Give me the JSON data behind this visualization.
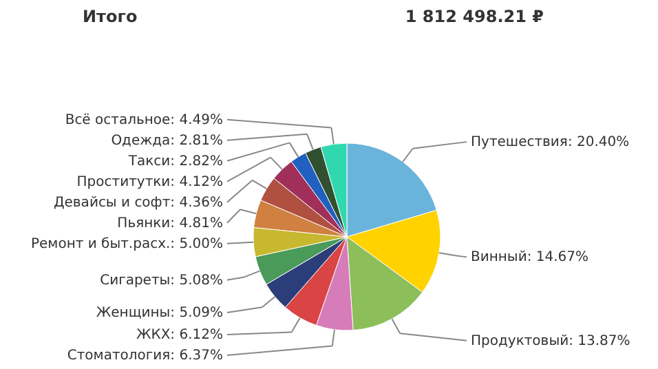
{
  "chart_data": {
    "type": "pie",
    "title": "Итого",
    "annotations": [
      "1 812 498.21 ₽"
    ],
    "categories": [
      "Путешествия",
      "Винный",
      "Продуктовый",
      "Стоматология",
      "ЖКХ",
      "Женщины",
      "Сигареты",
      "Ремонт и быт.расх.",
      "Пьянки",
      "Девайсы и софт",
      "Проститутки",
      "Такси",
      "Одежда",
      "Всё остальное"
    ],
    "values": [
      20.4,
      14.67,
      13.87,
      6.37,
      6.12,
      5.09,
      5.08,
      5.0,
      4.81,
      4.36,
      4.12,
      2.82,
      2.81,
      4.49
    ],
    "value_labels": [
      "20.40%",
      "14.67%",
      "13.87%",
      "6.37%",
      "6.12%",
      "5.09%",
      "5.08%",
      "5.00%",
      "4.81%",
      "4.36%",
      "4.12%",
      "2.82%",
      "2.81%",
      "4.49%"
    ],
    "colors": [
      "#6ab4dc",
      "#ffd200",
      "#8cbe5a",
      "#d67cb8",
      "#d94444",
      "#2c3e7a",
      "#4a9a5a",
      "#c8b830",
      "#d08040",
      "#b05040",
      "#a0305a",
      "#2060c0",
      "#305030",
      "#30d8b0"
    ]
  }
}
